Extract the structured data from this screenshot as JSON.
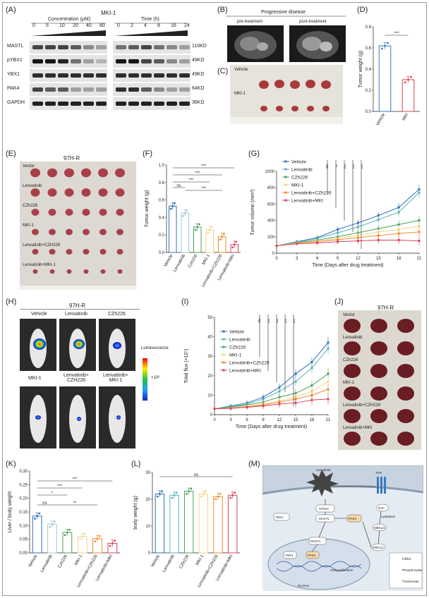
{
  "panel_labels": [
    "(A)",
    "(B)",
    "(C)",
    "(D)",
    "(E)",
    "(F)",
    "(G)",
    "(H)",
    "(I)",
    "(J)",
    "(K)",
    "(L)",
    "(M)"
  ],
  "panelA": {
    "title": "MKI-1",
    "conc_label": "Concentration (μM)",
    "time_label": "Time (h)",
    "conc_ticks": [
      "0",
      "5",
      "10",
      "20",
      "40",
      "80"
    ],
    "time_ticks": [
      "0",
      "2",
      "4",
      "8",
      "16",
      "24"
    ],
    "rows": [
      "MASTL",
      "pYBX1",
      "YBX1",
      "PAK4",
      "GAPDH"
    ],
    "sizes": [
      "110KD",
      "49KD",
      "49KD",
      "64KD",
      "36KD"
    ]
  },
  "panelB": {
    "title": "Progressive disease",
    "pre": "pre-treatment",
    "post": "post-treatment"
  },
  "panelC": {
    "vehicle": "Vehicle",
    "mki": "MKI-1"
  },
  "panelE": {
    "title": "97H-R",
    "groups": [
      "Vector",
      "Lenvatinib",
      "CZh226",
      "MKI-1",
      "Lenvatinib+CZH226",
      "Lenvatinib+MKI-1"
    ]
  },
  "panelH": {
    "title": "97H-R",
    "top": [
      "Vehicle",
      "Lenvatinib",
      "CZh226"
    ],
    "bottom": [
      "MKI-1",
      "Lenvatinib+\nCZH226",
      "Lenvatinib+\nMKI-1"
    ],
    "lum": "Luminescence",
    "scale": "×10⁶"
  },
  "panelJ": {
    "title": "97H-R",
    "groups": [
      "Vector",
      "Lenvatinib",
      "CZh226",
      "MKI-1",
      "Lenvatinib+CZH226",
      "Lenvatinib+MKI"
    ]
  },
  "panelM": {
    "labels": [
      "Lenvatinib",
      "TKR",
      "STK24",
      "YBX1",
      "MASTL",
      "PAK4",
      "RAF",
      "MEK1/2",
      "ERK1/2",
      "MASTL",
      "YBX1",
      "PAK4",
      "cytoplasm",
      "Cell proliferation",
      "Nucleus",
      "Inhibit",
      "Phosphorylate",
      "Translocate"
    ]
  },
  "chart_data": [
    {
      "panel": "D",
      "type": "bar",
      "categories": [
        "Vehicle",
        "MKI"
      ],
      "values": [
        0.62,
        0.3
      ],
      "ylabel": "Tumor weight (g)",
      "ylim": [
        0,
        0.8
      ],
      "yticks": [
        "0.0",
        "0.2",
        "0.4",
        "0.6",
        "0.8"
      ],
      "significance": [
        "***"
      ],
      "colors": [
        "#3a78c2",
        "#d9434f"
      ]
    },
    {
      "panel": "F",
      "type": "bar",
      "categories": [
        "Vehicle",
        "Lenvatinib",
        "Czh226",
        "MKI-1",
        "Lenvatinib+CZh226",
        "Lenvatinib+MKI"
      ],
      "values": [
        0.53,
        0.45,
        0.29,
        0.26,
        0.18,
        0.09
      ],
      "ylabel": "Tumor weight (g)",
      "ylim": [
        0,
        1.0
      ],
      "yticks": [
        "0.0",
        "0.2",
        "0.4",
        "0.6",
        "0.8",
        "1.0"
      ],
      "significance": [
        "***",
        "***",
        "***",
        "ns",
        "***"
      ],
      "colors": [
        "#2f6fb8",
        "#9fc8d8",
        "#49a05a",
        "#f2d58a",
        "#f08a2a",
        "#d9445c"
      ]
    },
    {
      "panel": "G",
      "type": "line",
      "xlabel": "Time (Days after drug treatment)",
      "ylabel": "Tumor volume (mm³)",
      "x": [
        0,
        3,
        6,
        9,
        12,
        15,
        18,
        21
      ],
      "ylim": [
        0,
        1000
      ],
      "yticks": [
        "0",
        "200",
        "400",
        "600",
        "800",
        "1000"
      ],
      "series": [
        {
          "name": "Vehicle",
          "values": [
            90,
            140,
            190,
            290,
            370,
            460,
            560,
            780
          ],
          "color": "#2f6fb8"
        },
        {
          "name": "Lenvatinib",
          "values": [
            90,
            135,
            180,
            250,
            320,
            410,
            500,
            740
          ],
          "color": "#58b0b8"
        },
        {
          "name": "CZh226",
          "values": [
            90,
            130,
            160,
            200,
            250,
            300,
            350,
            400
          ],
          "color": "#49a05a"
        },
        {
          "name": "MKI-1",
          "values": [
            90,
            125,
            150,
            180,
            220,
            260,
            290,
            330
          ],
          "color": "#f2d58a"
        },
        {
          "name": "Lenvatinib+CZh226",
          "values": [
            90,
            120,
            140,
            165,
            190,
            215,
            240,
            260
          ],
          "color": "#f08a2a"
        },
        {
          "name": "Lenvatinib+MKI",
          "values": [
            90,
            115,
            125,
            140,
            150,
            160,
            160,
            150
          ],
          "color": "#d9445c"
        }
      ],
      "significance": [
        "ns",
        "**",
        "***",
        "***",
        "***"
      ]
    },
    {
      "panel": "I",
      "type": "line",
      "xlabel": "Time (Days after drug treatment)",
      "ylabel": "Total flux (×10⁷)",
      "x": [
        0,
        3,
        6,
        9,
        12,
        15,
        18,
        21
      ],
      "ylim": [
        0,
        50
      ],
      "yticks": [
        "0",
        "10",
        "20",
        "30",
        "40",
        "50"
      ],
      "series": [
        {
          "name": "Vehicle",
          "values": [
            3,
            4.5,
            6,
            9,
            14,
            21,
            27,
            37
          ],
          "color": "#2f6fb8"
        },
        {
          "name": "Lenvatinib",
          "values": [
            3,
            4,
            5.5,
            8,
            12,
            17,
            24,
            34
          ],
          "color": "#58b0b8"
        },
        {
          "name": "CZh226",
          "values": [
            3,
            3.8,
            5,
            6.5,
            9,
            11,
            15,
            21
          ],
          "color": "#49a05a"
        },
        {
          "name": "MKI-1",
          "values": [
            3,
            3.5,
            4.5,
            5.5,
            7,
            9,
            12,
            17
          ],
          "color": "#f2d58a"
        },
        {
          "name": "Lenvatinib+CZh226",
          "values": [
            3,
            3.3,
            4,
            5,
            6.5,
            8,
            10,
            13
          ],
          "color": "#f08a2a"
        },
        {
          "name": "Lenvatinib+MKI",
          "values": [
            3,
            3.2,
            3.8,
            4.5,
            5.5,
            6,
            7.5,
            8
          ],
          "color": "#d9445c"
        }
      ],
      "significance": [
        "ns",
        "***",
        "***",
        "***",
        "***"
      ]
    },
    {
      "panel": "K",
      "type": "bar",
      "categories": [
        "Vehicle",
        "Lenvatinib",
        "Czh226",
        "MKI-1",
        "Lenvatinib+CZh226",
        "Lenvatinib+MKI"
      ],
      "values": [
        0.135,
        0.105,
        0.075,
        0.06,
        0.052,
        0.035
      ],
      "ylabel": "Liver / body weight",
      "ylim": [
        0,
        0.3
      ],
      "yticks": [
        "0.00",
        "0.05",
        "0.10",
        "0.15",
        "0.20",
        "0.25",
        "0.30"
      ],
      "significance": [
        "***",
        "***",
        "*",
        "ns",
        "**"
      ],
      "colors": [
        "#2f6fb8",
        "#9fc8d8",
        "#49a05a",
        "#f2d58a",
        "#f08a2a",
        "#d9445c"
      ]
    },
    {
      "panel": "L",
      "type": "bar",
      "categories": [
        "Vehicle",
        "Lenvatinib",
        "CZh226",
        "MKI-1",
        "Lenvatinib+CZh226",
        "Lenvatinib+MKI"
      ],
      "values": [
        22,
        21.5,
        23,
        22,
        21,
        21.5
      ],
      "ylabel": "body weight (g)",
      "ylim": [
        0,
        30
      ],
      "yticks": [
        "0",
        "10",
        "20",
        "30"
      ],
      "significance": [
        "ns"
      ],
      "colors": [
        "#2f6fb8",
        "#58b0b8",
        "#49a05a",
        "#f2d58a",
        "#f08a2a",
        "#d9445c"
      ]
    }
  ]
}
